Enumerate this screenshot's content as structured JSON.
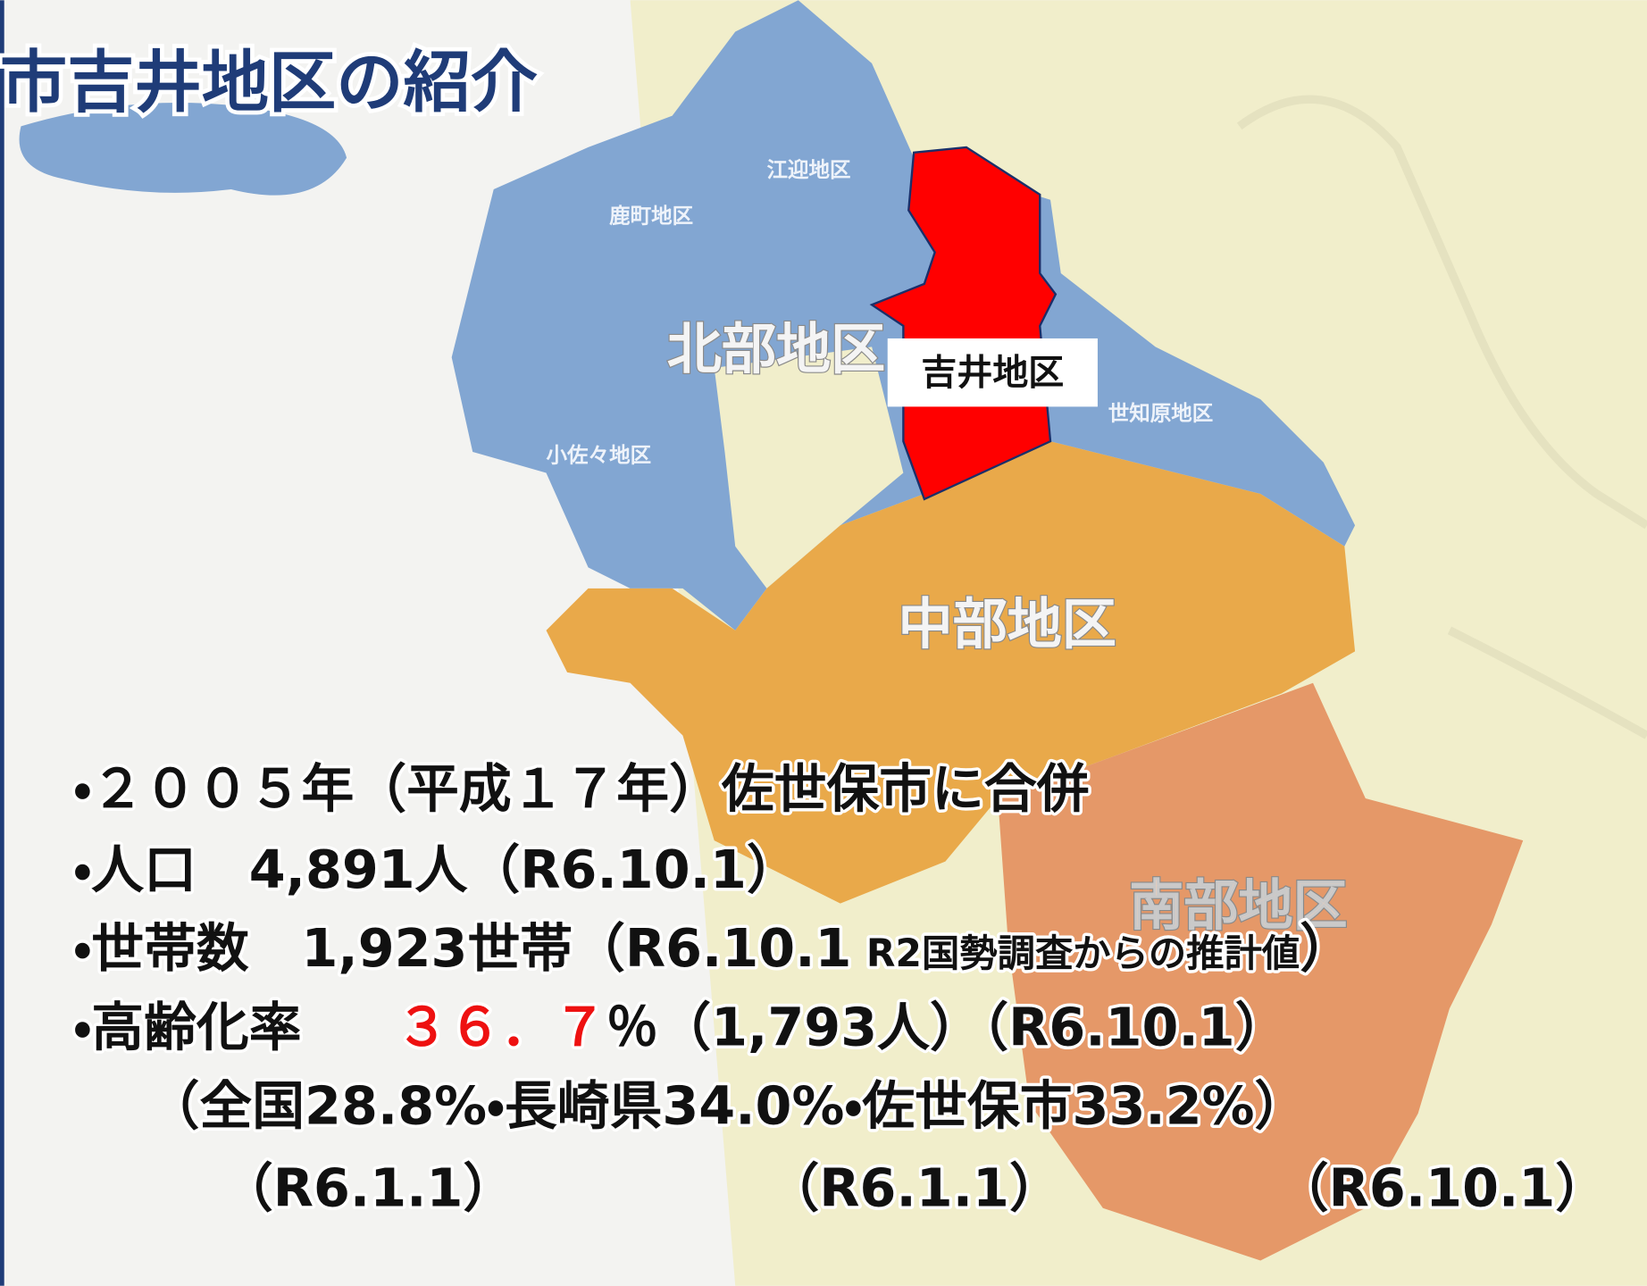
{
  "title": "市吉井地区の紹介",
  "map": {
    "labels": [
      "江迎地区",
      "鹿町地区",
      "北部地区",
      "吉井地区",
      "世知原地区",
      "小佐々地区",
      "中部地区",
      "南部地区"
    ]
  },
  "facts": {
    "merger": "・２００５年（平成１７年）佐世保市に合併",
    "population": "・人口　4,891人（R6.10.1）",
    "households": {
      "main": "・世帯数　1,923世帯（R6.10.1",
      "note": "R2国勢調査からの推計値",
      "close": "）"
    },
    "aging": {
      "label": "・高齢化率　",
      "rate": "３６．７",
      "rest": "％（1,793人）（R6.10.1）"
    },
    "comparison": "（全国28.8%・長崎県34.0%・佐世保市33.2%）",
    "dates": [
      "（R6.1.1）",
      "（R6.1.1）",
      "（R6.10.1）"
    ]
  }
}
